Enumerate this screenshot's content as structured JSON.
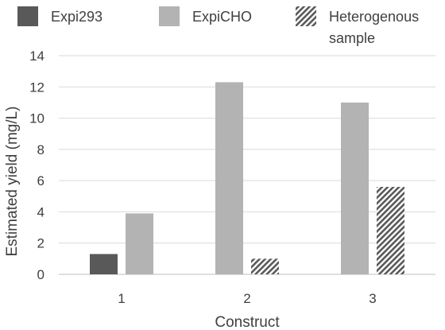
{
  "chart_data": {
    "type": "bar",
    "categories": [
      "1",
      "2",
      "3"
    ],
    "series": [
      {
        "name": "Expi293",
        "color": "#595959",
        "pattern": "solid",
        "values": [
          1.3,
          null,
          null
        ]
      },
      {
        "name": "ExpiCHO",
        "color": "#b3b3b3",
        "pattern": "solid",
        "values": [
          3.9,
          12.3,
          11.0
        ]
      },
      {
        "name": "Heterogenous sample",
        "color": "#595959",
        "pattern": "hatched",
        "values": [
          null,
          1.0,
          5.6
        ]
      }
    ],
    "title": "",
    "xlabel": "Construct",
    "ylabel": "Estimated yield (mg/L)",
    "ylim": [
      0,
      14
    ],
    "yticks": [
      0,
      2,
      4,
      6,
      8,
      10,
      12,
      14
    ],
    "grid": true,
    "legend_position": "top"
  }
}
